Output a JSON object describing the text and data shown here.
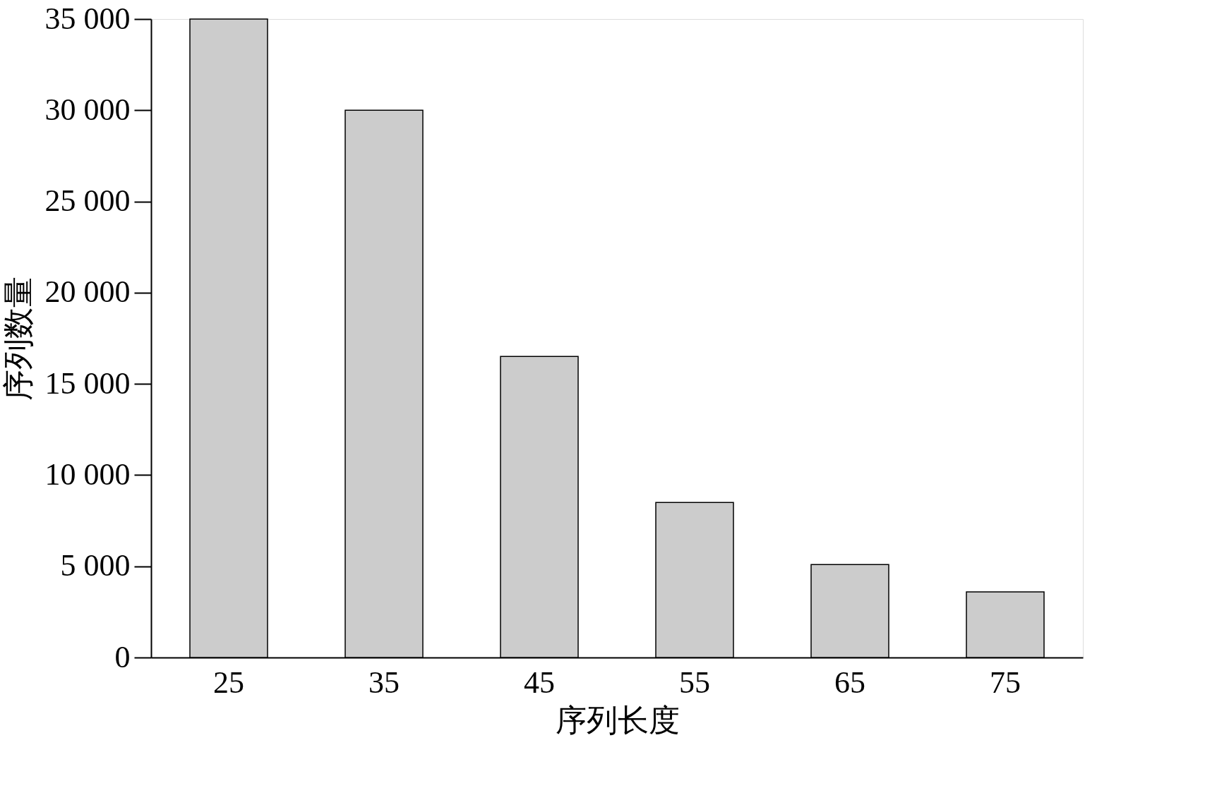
{
  "chart_data": {
    "type": "bar",
    "xlabel": "序列长度",
    "ylabel": "序列数量",
    "categories": [
      "25",
      "35",
      "45",
      "55",
      "65",
      "75"
    ],
    "values": [
      35000,
      30000,
      16500,
      8500,
      5100,
      3600
    ],
    "color": "#cccccc",
    "ylim": [
      0,
      35000
    ],
    "yticks": [
      {
        "value": 0,
        "label": "0"
      },
      {
        "value": 5000,
        "label": "5 000"
      },
      {
        "value": 10000,
        "label": "10 000"
      },
      {
        "value": 15000,
        "label": "15 000"
      },
      {
        "value": 20000,
        "label": "20 000"
      },
      {
        "value": 25000,
        "label": "25 000"
      },
      {
        "value": 30000,
        "label": "30 000"
      },
      {
        "value": 35000,
        "label": "35 000"
      }
    ],
    "grid": false
  }
}
